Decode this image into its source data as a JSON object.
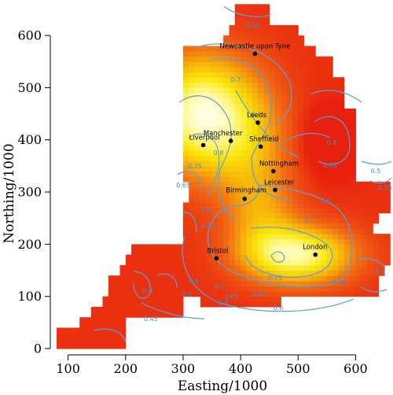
{
  "chart_data": {
    "type": "heatmap",
    "xlabel": "Easting/1000",
    "ylabel": "Northing/1000",
    "xlim": [
      80,
      665
    ],
    "ylim": [
      0,
      665
    ],
    "x_ticks": [
      100,
      200,
      300,
      400,
      500,
      600
    ],
    "y_ticks": [
      0,
      100,
      200,
      300,
      400,
      500,
      600
    ],
    "x_tick_labels": [
      "100",
      "200",
      "300",
      "400",
      "500",
      "600"
    ],
    "y_tick_labels": [
      "0",
      "100",
      "200",
      "300",
      "400",
      "500",
      "600"
    ],
    "colors": {
      "low": "#e8200e",
      "mid": "#f5b800",
      "high": "#ffffe8",
      "contour": "#5aa0dc"
    },
    "cities": [
      {
        "name": "Newcastle upon Tyne",
        "x": 425,
        "y": 565
      },
      {
        "name": "Leeds",
        "x": 430,
        "y": 433
      },
      {
        "name": "Manchester",
        "x": 383,
        "y": 398
      },
      {
        "name": "Sheffield",
        "x": 435,
        "y": 387
      },
      {
        "name": "Liverpool",
        "x": 335,
        "y": 390
      },
      {
        "name": "Nottingham",
        "x": 457,
        "y": 340
      },
      {
        "name": "Leicester",
        "x": 460,
        "y": 304
      },
      {
        "name": "Birmingham",
        "x": 407,
        "y": 287
      },
      {
        "name": "Bristol",
        "x": 358,
        "y": 173
      },
      {
        "name": "London",
        "x": 530,
        "y": 180
      }
    ],
    "contour_labels": [
      "0.55",
      "0.7",
      "0.7",
      "0.75",
      "0.8",
      "0.65",
      "0.6",
      "0.55",
      "0.4",
      "0.45",
      "0.5",
      "0.6",
      "0.55",
      "0.7",
      "0.75",
      "0.65",
      "0.6",
      "0.5",
      "0.4",
      "0.45",
      "0.4",
      "0.5",
      "0.6",
      "0.4",
      "0.45",
      "0.55"
    ]
  }
}
